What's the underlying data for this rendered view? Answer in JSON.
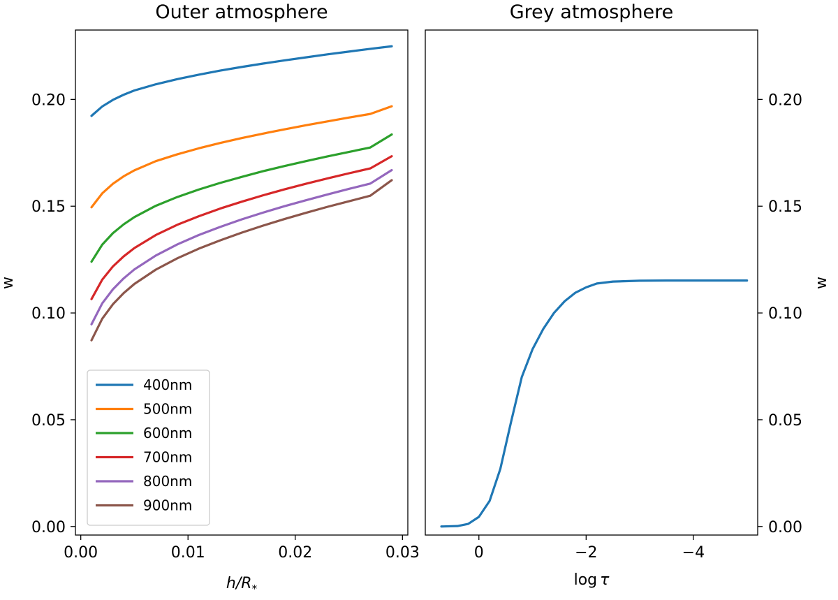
{
  "chart_data": [
    {
      "type": "line",
      "title": "Outer atmosphere",
      "xlabel": "h/R",
      "xlabel_subscript": "*",
      "ylabel": "w",
      "xlim": [
        -0.0005,
        0.0305
      ],
      "ylim": [
        -0.004,
        0.2325
      ],
      "xticks": [
        0.0,
        0.01,
        0.02,
        0.03
      ],
      "xtick_labels": [
        "0.00",
        "0.01",
        "0.02",
        "0.03"
      ],
      "yticks": [
        0.0,
        0.05,
        0.1,
        0.15,
        0.2
      ],
      "ytick_labels": [
        "0.00",
        "0.05",
        "0.10",
        "0.15",
        "0.20"
      ],
      "grid": false,
      "legend_position": "lower-left",
      "x": [
        0.001,
        0.002,
        0.003,
        0.004,
        0.005,
        0.007,
        0.009,
        0.011,
        0.013,
        0.015,
        0.017,
        0.019,
        0.021,
        0.023,
        0.025,
        0.027,
        0.029
      ],
      "series": [
        {
          "name": "400nm",
          "color": "#1f77b4",
          "values": [
            0.1923,
            0.1967,
            0.1998,
            0.2022,
            0.2042,
            0.2071,
            0.2095,
            0.2116,
            0.2135,
            0.2152,
            0.2168,
            0.2183,
            0.2197,
            0.2211,
            0.2224,
            0.2237,
            0.2249
          ]
        },
        {
          "name": "500nm",
          "color": "#ff7f0e",
          "values": [
            0.1495,
            0.156,
            0.1605,
            0.164,
            0.1668,
            0.1711,
            0.1743,
            0.1771,
            0.1796,
            0.1819,
            0.184,
            0.186,
            0.1879,
            0.1897,
            0.1915,
            0.1932,
            0.1968
          ]
        },
        {
          "name": "600nm",
          "color": "#2ca02c",
          "values": [
            0.124,
            0.132,
            0.1374,
            0.1415,
            0.1449,
            0.1502,
            0.1543,
            0.1578,
            0.1609,
            0.1637,
            0.1664,
            0.1688,
            0.1711,
            0.1733,
            0.1754,
            0.1775,
            0.1836
          ]
        },
        {
          "name": "700nm",
          "color": "#d62728",
          "values": [
            0.1065,
            0.1156,
            0.1218,
            0.1265,
            0.1304,
            0.1365,
            0.1413,
            0.1453,
            0.1489,
            0.1521,
            0.1551,
            0.1579,
            0.1605,
            0.163,
            0.1654,
            0.1677,
            0.1734
          ]
        },
        {
          "name": "800nm",
          "color": "#9467bd",
          "values": [
            0.0947,
            0.1045,
            0.1111,
            0.1162,
            0.1204,
            0.1269,
            0.1321,
            0.1365,
            0.1403,
            0.1438,
            0.147,
            0.15,
            0.1528,
            0.1555,
            0.1581,
            0.1606,
            0.1669
          ]
        },
        {
          "name": "900nm",
          "color": "#8c564b",
          "values": [
            0.0872,
            0.0973,
            0.1041,
            0.1093,
            0.1136,
            0.1203,
            0.1256,
            0.1301,
            0.134,
            0.1376,
            0.1409,
            0.144,
            0.1469,
            0.1497,
            0.1523,
            0.1549,
            0.1622
          ]
        }
      ]
    },
    {
      "type": "line",
      "title": "Grey atmosphere",
      "xlabel": "log",
      "xlabel_symbol": "τ",
      "ylabel": "w",
      "xlim": [
        1.0,
        -5.2
      ],
      "ylim": [
        -0.004,
        0.2325
      ],
      "xticks": [
        0,
        -2,
        -4
      ],
      "xtick_labels": [
        "0",
        "−2",
        "−4"
      ],
      "yticks": [
        0.0,
        0.05,
        0.1,
        0.15,
        0.2
      ],
      "ytick_labels": [
        "0.00",
        "0.05",
        "0.10",
        "0.15",
        "0.20"
      ],
      "y_axis_side": "right",
      "grid": false,
      "x": [
        0.7,
        0.4,
        0.2,
        0.0,
        -0.2,
        -0.4,
        -0.6,
        -0.8,
        -1.0,
        -1.2,
        -1.4,
        -1.6,
        -1.8,
        -2.0,
        -2.2,
        -2.5,
        -3.0,
        -3.5,
        -4.0,
        -4.5,
        -5.0
      ],
      "series": [
        {
          "name": "",
          "color": "#1f77b4",
          "values": [
            0.0,
            0.0002,
            0.0012,
            0.0045,
            0.012,
            0.027,
            0.049,
            0.07,
            0.083,
            0.0925,
            0.1,
            0.1055,
            0.1095,
            0.112,
            0.1138,
            0.1147,
            0.1151,
            0.1152,
            0.1152,
            0.1152,
            0.1152
          ]
        }
      ]
    }
  ]
}
